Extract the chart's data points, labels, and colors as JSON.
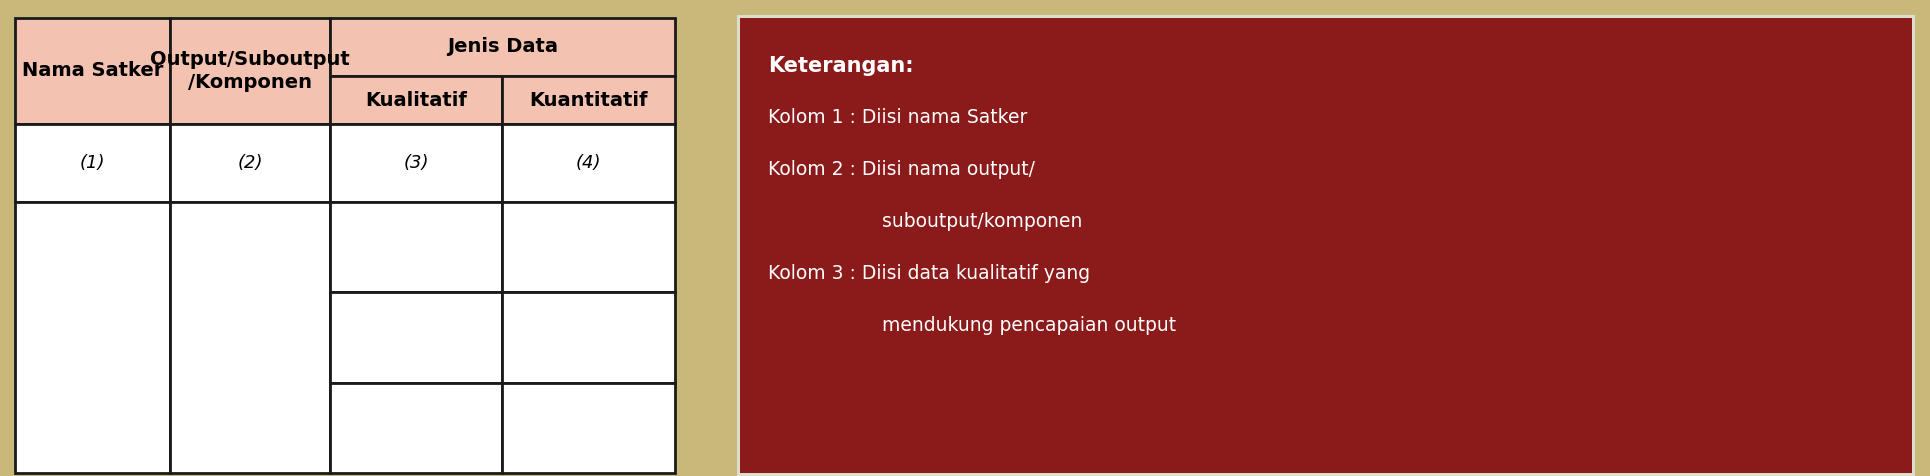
{
  "header_bg": "#F4C2B0",
  "header_text_color": "#000000",
  "table_bg": "#FFFFFF",
  "table_border_color": "#1a1a1a",
  "annotation_bg": "#8B1A1A",
  "annotation_text_color": "#FFFFFF",
  "outer_bg": "#C8B87A",
  "col1_header": "Nama Satker",
  "col2_header": "Output/Suboutput\n/Komponen",
  "col3_header": "Jenis Data",
  "col3a_header": "Kualitatif",
  "col3b_header": "Kuantitatif",
  "row_labels": [
    "(1)",
    "(2)",
    "(3)",
    "(4)"
  ],
  "annotation_title": "Keterangan:",
  "annotation_lines": [
    [
      "Kolom 1 : Diisi nama Satker",
      0
    ],
    [
      "Kolom 2 : Diisi nama output/",
      0
    ],
    [
      "         suboutput/komponen",
      1
    ],
    [
      "Kolom 3 : Diisi data kualitatif yang",
      0
    ],
    [
      "         mendukung pencapaian output",
      1
    ]
  ],
  "figsize": [
    19.3,
    4.76
  ],
  "dpi": 100
}
